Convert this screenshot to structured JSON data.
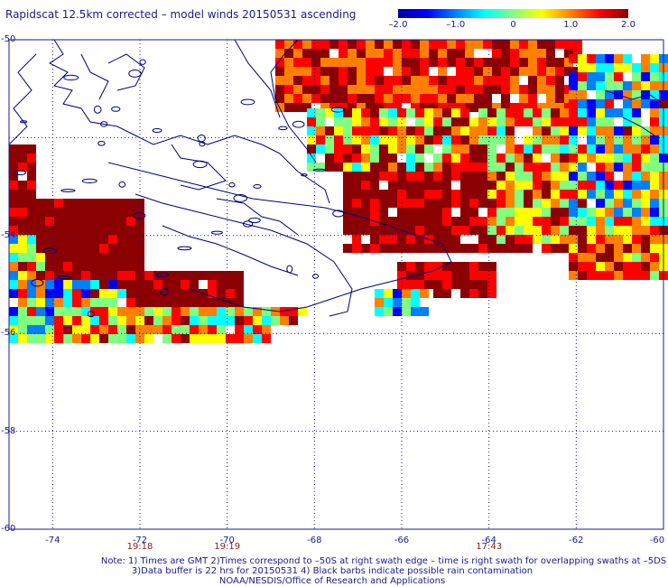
{
  "title": "Rapidscat 12.5km corrected – model winds 20150531 ascending",
  "colorbar": {
    "ticks": [
      "–2.0",
      "–1.0",
      "0",
      "1.0",
      "2.0"
    ],
    "tick_values": [
      -2.0,
      -1.0,
      0,
      1.0,
      2.0
    ],
    "colors": [
      "#0000a0",
      "#0000ff",
      "#0080ff",
      "#00ffff",
      "#80ff80",
      "#ffff00",
      "#ff8000",
      "#ff0000",
      "#8b0000"
    ]
  },
  "lat_labels": [
    "-50",
    "-54",
    "-56",
    "-58",
    "-60"
  ],
  "lat_values": [
    -50,
    -54,
    -56,
    -58,
    -60
  ],
  "lon_labels": [
    "-74",
    "-72",
    "-70",
    "-68",
    "-66",
    "-64",
    "-62",
    "-60"
  ],
  "lon_values": [
    -74,
    -72,
    -70,
    -68,
    -66,
    -64,
    -62,
    -60
  ],
  "time_labels": [
    "19:18",
    "19:19",
    "17:43"
  ],
  "time_lons": [
    -72,
    -70,
    -64
  ],
  "notes": [
    "Note: 1) Times are GMT 2)Times correspond to –50S at right swath edge – time is right swath for overlapping swaths at –5DS",
    "3)Data buffer is 22 hrs for 20150531 4) Black barbs indicate possible rain contamination",
    "NOAA/NESDIS/Office of Research and Applications"
  ],
  "colors": {
    "grid": "#1a1a8c",
    "coast": "#00007a",
    "time": "#8b1a1a"
  }
}
